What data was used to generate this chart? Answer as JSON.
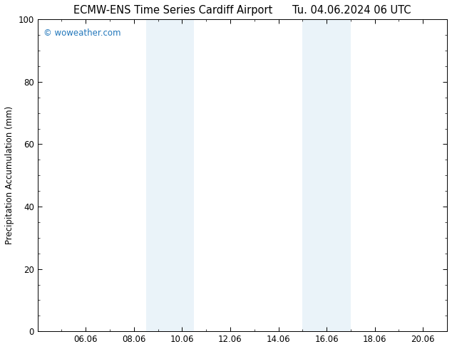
{
  "title_left": "ECMW-ENS Time Series Cardiff Airport",
  "title_right": "Tu. 04.06.2024 06 UTC",
  "ylabel": "Precipitation Accumulation (mm)",
  "ylim": [
    0,
    100
  ],
  "yticks": [
    0,
    20,
    40,
    60,
    80,
    100
  ],
  "xlim_left": 4.0,
  "xlim_right": 21.0,
  "xtick_positions": [
    6,
    8,
    10,
    12,
    14,
    16,
    18,
    20
  ],
  "xtick_labels": [
    "06.06",
    "08.06",
    "10.06",
    "12.06",
    "14.06",
    "16.06",
    "18.06",
    "20.06"
  ],
  "shaded_regions": [
    {
      "xmin": 8.5,
      "xmax": 9.5
    },
    {
      "xmin": 9.5,
      "xmax": 10.5
    },
    {
      "xmin": 15.0,
      "xmax": 16.0
    },
    {
      "xmin": 16.0,
      "xmax": 17.0
    }
  ],
  "shade_color": "#daeaf5",
  "shade_alpha": 0.55,
  "background_color": "#ffffff",
  "plot_bg_color": "#ffffff",
  "watermark": "© woweather.com",
  "watermark_color": "#2277bb",
  "title_fontsize": 10.5,
  "tick_fontsize": 8.5,
  "ylabel_fontsize": 8.5,
  "watermark_fontsize": 8.5
}
